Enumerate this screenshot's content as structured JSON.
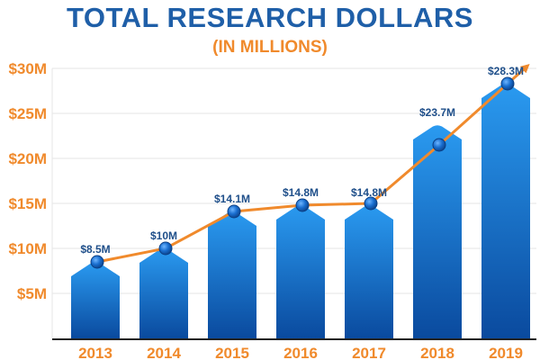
{
  "chart_data": {
    "type": "bar",
    "title": "TOTAL RESEARCH DOLLARS",
    "subtitle": "(IN MILLIONS)",
    "categories": [
      "2013",
      "2014",
      "2015",
      "2016",
      "2017",
      "2018",
      "2019"
    ],
    "values": [
      8.5,
      10,
      14.1,
      14.8,
      14.8,
      23.7,
      28.3
    ],
    "data_labels": [
      "$8.5M",
      "$10M",
      "$14.1M",
      "$14.8M",
      "$14.8M",
      "$23.7M",
      "$28.3M"
    ],
    "line_values": [
      8.5,
      10,
      14.1,
      14.8,
      15.0,
      21.5,
      28.3
    ],
    "ylim": [
      0,
      30
    ],
    "yticks": [
      5,
      10,
      15,
      20,
      25,
      30
    ],
    "ytick_labels": [
      "$5M",
      "$10M",
      "$15M",
      "$20M",
      "$25M",
      "$30M"
    ],
    "xlabel": "",
    "ylabel": "",
    "grid": true,
    "colors": {
      "bar_top": "#2a9af0",
      "bar_bottom": "#0a4a9e",
      "line": "#f08a2c",
      "marker": "#1a6fd0",
      "marker_dark": "#0b3f85",
      "grid": "#e6e6e6",
      "title": "#1f5fa8",
      "accent": "#f08a2c",
      "label": "#1f4f8a"
    }
  }
}
